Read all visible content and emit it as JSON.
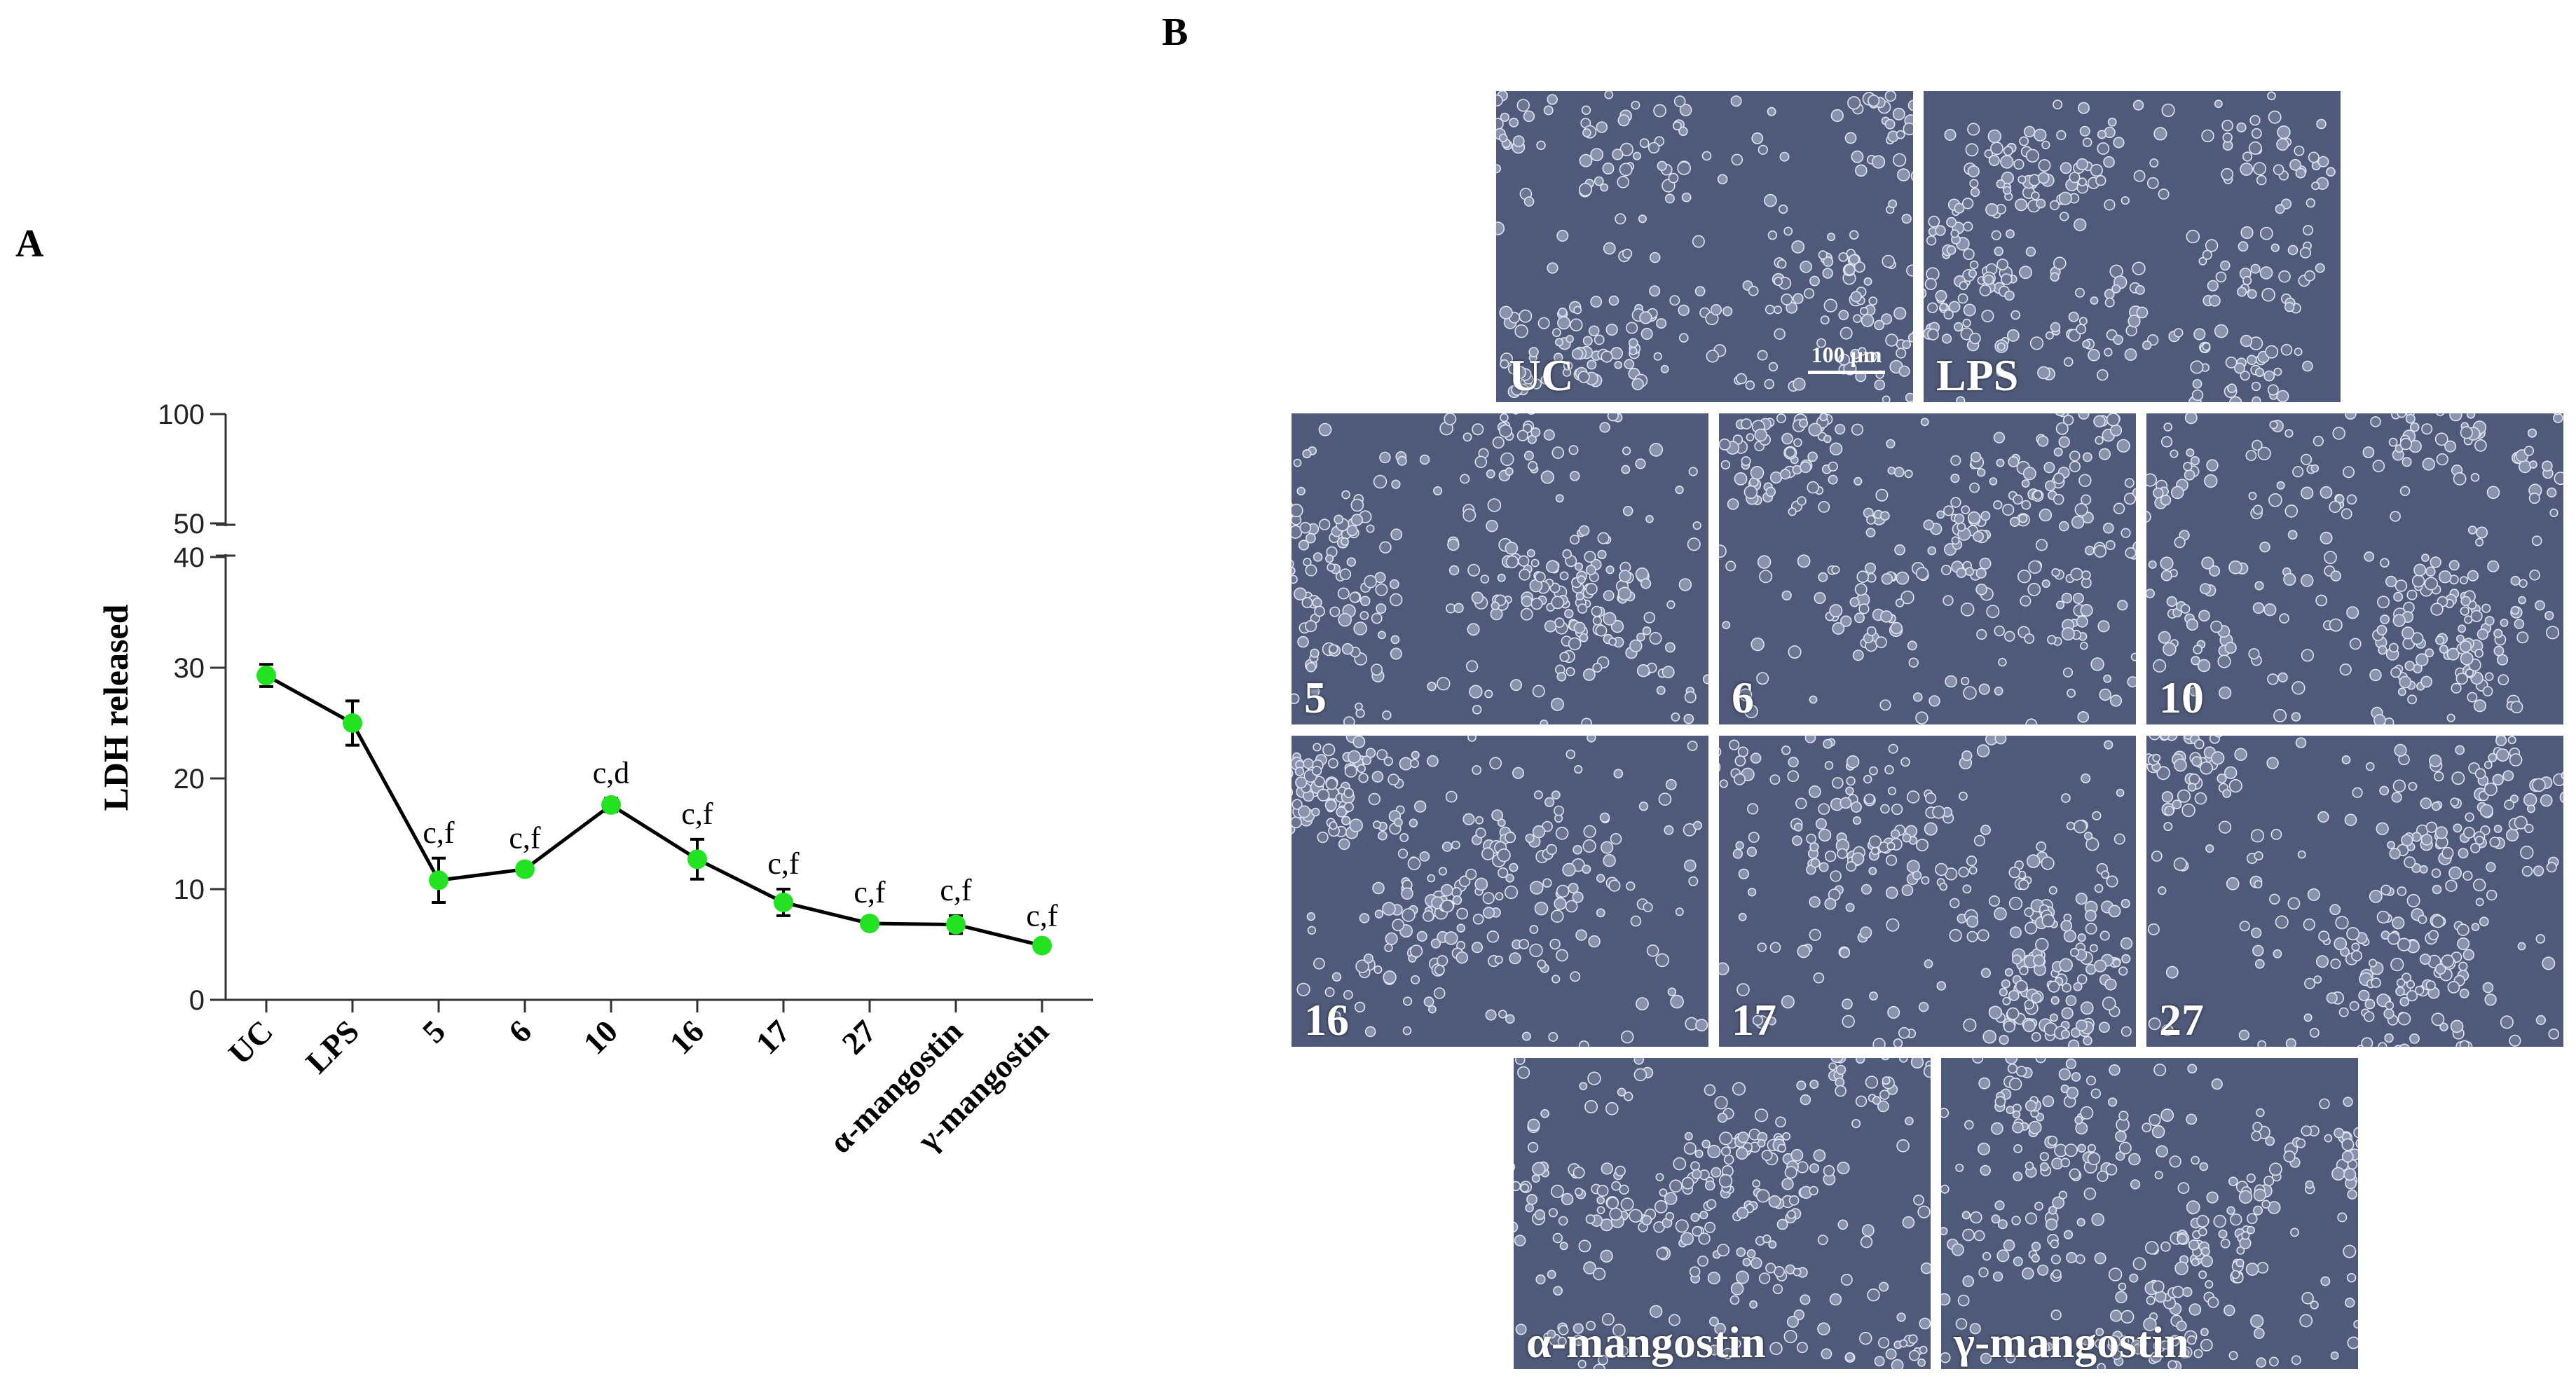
{
  "panel_labels": {
    "a": "A",
    "b": "B"
  },
  "chart_data": {
    "type": "line",
    "title": "",
    "xlabel": "",
    "ylabel": "LDH released",
    "ylim": [
      0,
      100
    ],
    "y_axis_break": [
      40,
      50
    ],
    "yticks_lower": [
      0,
      10,
      20,
      30,
      40
    ],
    "yticks_upper": [
      50,
      100
    ],
    "categories": [
      "UC",
      "LPS",
      "5",
      "6",
      "10",
      "16",
      "17",
      "27",
      "α-mangostin",
      "γ-mangostin"
    ],
    "series": [
      {
        "name": "LDH released",
        "values": [
          29.3,
          25.0,
          10.8,
          11.8,
          17.6,
          12.7,
          8.8,
          6.9,
          6.8,
          4.9
        ],
        "errors": [
          1.0,
          2.0,
          2.0,
          0.5,
          0.6,
          1.8,
          1.2,
          0.5,
          0.8,
          0.4
        ]
      }
    ],
    "annotations": [
      "",
      "",
      "c,f",
      "c,f",
      "c,d",
      "c,f",
      "c,f",
      "c,f",
      "c,f",
      "c,f"
    ],
    "colors": {
      "marker": "#22e222",
      "line": "#000000"
    }
  },
  "micrographs": {
    "scale_bar": "100 μm",
    "panels": [
      {
        "label": "UC"
      },
      {
        "label": "LPS"
      },
      {
        "label": "5"
      },
      {
        "label": "6"
      },
      {
        "label": "10"
      },
      {
        "label": "16"
      },
      {
        "label": "17"
      },
      {
        "label": "27"
      },
      {
        "label": "α-mangostin"
      },
      {
        "label": "γ-mangostin"
      }
    ],
    "background_color": "#4f5a7a"
  }
}
